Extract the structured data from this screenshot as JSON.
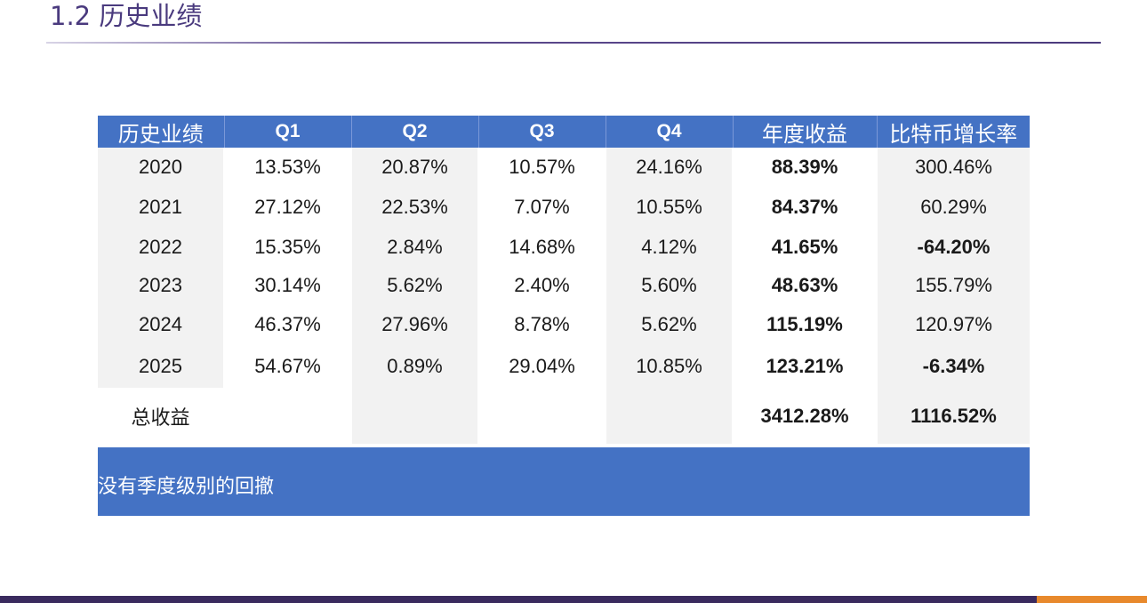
{
  "slide": {
    "title": "1.2  历史业绩"
  },
  "table": {
    "headers": [
      "历史业绩",
      "Q1",
      "Q2",
      "Q3",
      "Q4",
      "年度收益",
      "比特币增长率"
    ],
    "rows": [
      {
        "year": "2020",
        "q1": "13.53%",
        "q2": "20.87%",
        "q3": "10.57%",
        "q4": "24.16%",
        "annual": "88.39%",
        "btc": "300.46%",
        "btc_negative": false
      },
      {
        "year": "2021",
        "q1": "27.12%",
        "q2": "22.53%",
        "q3": "7.07%",
        "q4": "10.55%",
        "annual": "84.37%",
        "btc": "60.29%",
        "btc_negative": false
      },
      {
        "year": "2022",
        "q1": "15.35%",
        "q2": "2.84%",
        "q3": "14.68%",
        "q4": "4.12%",
        "annual": "41.65%",
        "btc": "-64.20%",
        "btc_negative": true
      },
      {
        "year": "2023",
        "q1": "30.14%",
        "q2": "5.62%",
        "q3": "2.40%",
        "q4": "5.60%",
        "annual": "48.63%",
        "btc": "155.79%",
        "btc_negative": false
      },
      {
        "year": "2024",
        "q1": "46.37%",
        "q2": "27.96%",
        "q3": "8.78%",
        "q4": "5.62%",
        "annual": "115.19%",
        "btc": "120.97%",
        "btc_negative": false
      },
      {
        "year": "2025",
        "q1": "54.67%",
        "q2": "0.89%",
        "q3": "29.04%",
        "q4": "10.85%",
        "annual": "123.21%",
        "btc": "-6.34%",
        "btc_negative": true
      }
    ],
    "total": {
      "label": "总收益",
      "annual": "3412.28%",
      "btc": "1116.52%"
    }
  },
  "note": {
    "text": "没有季度级别的回撤"
  },
  "colors": {
    "header_blue": "#4472c4",
    "negative_red": "#e02020",
    "title_purple": "#4a3a7e",
    "footer_dark": "#3a2a5e",
    "footer_accent": "#e8892c"
  }
}
